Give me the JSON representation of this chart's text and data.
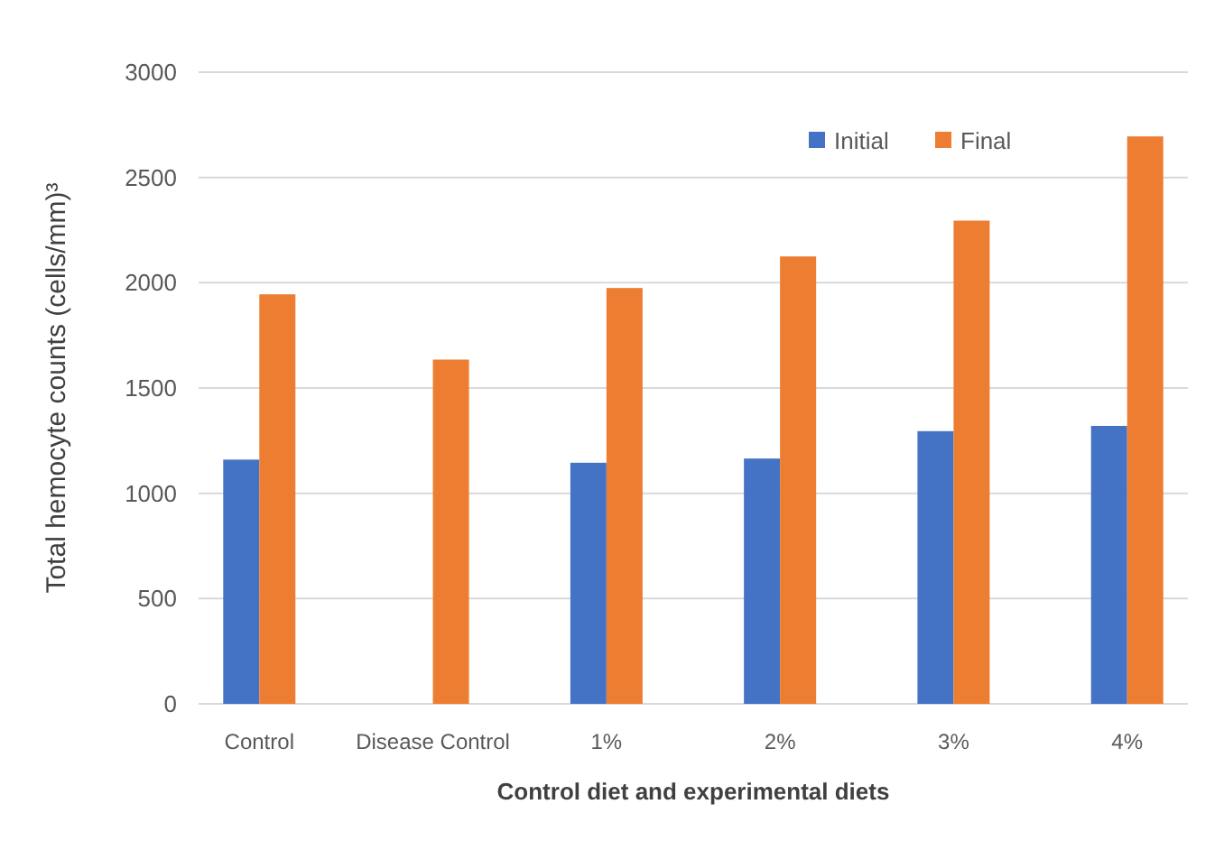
{
  "chart_data": {
    "type": "bar",
    "xlabel": "Control diet and experimental diets",
    "ylabel": "Total hemocyte counts (cells/mm)³",
    "categories": [
      "Control",
      "Disease Control",
      "1%",
      "2%",
      "3%",
      "4%"
    ],
    "series": [
      {
        "name": "Initial",
        "color": "#4472c4",
        "values": [
          1160,
          null,
          1145,
          1165,
          1295,
          1320
        ]
      },
      {
        "name": "Final",
        "color": "#ed7d31",
        "values": [
          1945,
          1635,
          1975,
          2125,
          2295,
          2695
        ]
      }
    ],
    "ylim": [
      0,
      3000
    ],
    "yticks": [
      0,
      500,
      1000,
      1500,
      2000,
      2500,
      3000
    ],
    "grid": "y",
    "legend": "top right"
  }
}
